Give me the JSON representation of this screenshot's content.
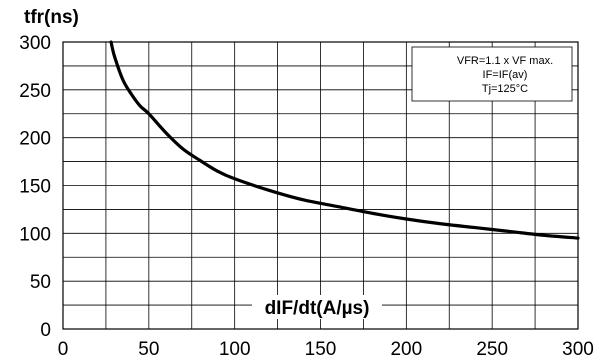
{
  "chart_data": {
    "type": "line",
    "ylabel": "tfr(ns)",
    "xlabel": "dIF/dt(A/µs)",
    "xlim": [
      0,
      300
    ],
    "ylim": [
      0,
      300
    ],
    "x_ticks": [
      "0",
      "50",
      "100",
      "150",
      "200",
      "250",
      "300"
    ],
    "y_ticks": [
      "0",
      "50",
      "100",
      "150",
      "200",
      "250",
      "300"
    ],
    "grid": true,
    "annotation": [
      "VFR=1.1 x VF max.",
      "IF=IF(av)",
      "Tj=125°C"
    ],
    "series": [
      {
        "x": [
          28,
          30,
          35,
          40,
          45,
          50,
          60,
          70,
          80,
          90,
          100,
          120,
          140,
          160,
          180,
          200,
          220,
          240,
          260,
          280,
          300
        ],
        "y": [
          300,
          285,
          260,
          245,
          233,
          225,
          205,
          188,
          176,
          165,
          157,
          145,
          135,
          128,
          121,
          115,
          110,
          106,
          102,
          98,
          95
        ]
      }
    ],
    "colors": {
      "line": "#000000",
      "grid": "#000000",
      "background": "#ffffff"
    }
  }
}
